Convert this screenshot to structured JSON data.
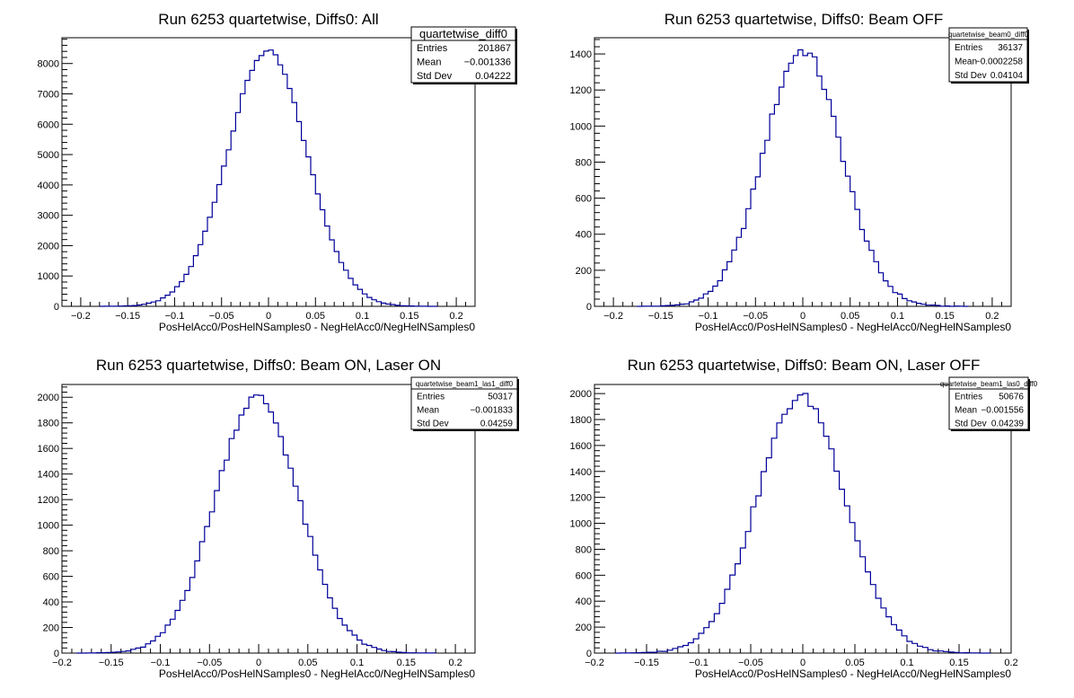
{
  "chart_data": [
    {
      "type": "histogram",
      "title": "Run 6253 quartetwise, Diffs0: All",
      "xlabel": "PosHelAcc0/PosHelNSamples0 - NegHelAcc0/NegHelNSamples0",
      "xlim": [
        -0.22,
        0.22
      ],
      "ylim": [
        0,
        8850
      ],
      "xticks": [
        -0.2,
        -0.15,
        -0.1,
        -0.05,
        0,
        0.05,
        0.1,
        0.15,
        0.2
      ],
      "xtick_labels": [
        "−0.2",
        "−0.15",
        "−0.1",
        "−0.05",
        "0",
        "0.05",
        "0.1",
        "0.15",
        "0.2"
      ],
      "yticks": [
        0,
        1000,
        2000,
        3000,
        4000,
        5000,
        6000,
        7000,
        8000
      ],
      "ytick_labels": [
        "0",
        "1000",
        "2000",
        "3000",
        "4000",
        "5000",
        "6000",
        "7000",
        "8000"
      ],
      "bin_width": 0.005,
      "peak": 8400,
      "mean": -0.001336,
      "std": 0.04222,
      "color": "#000099",
      "stats": {
        "name": "quartetwise_diff0",
        "rows": [
          {
            "label": "Entries",
            "value": "201867"
          },
          {
            "label": "Mean",
            "value": "−0.001336"
          },
          {
            "label": "Std Dev",
            "value": "0.04222"
          }
        ]
      }
    },
    {
      "type": "histogram",
      "title": "Run 6253 quartetwise, Diffs0: Beam OFF",
      "xlabel": "PosHelAcc0/PosHelNSamples0 - NegHelAcc0/NegHelNSamples0",
      "xlim": [
        -0.22,
        0.22
      ],
      "ylim": [
        0,
        1490
      ],
      "xticks": [
        -0.2,
        -0.15,
        -0.1,
        -0.05,
        0,
        0.05,
        0.1,
        0.15,
        0.2
      ],
      "xtick_labels": [
        "−0.2",
        "−0.15",
        "−0.1",
        "−0.05",
        "0",
        "0.05",
        "0.1",
        "0.15",
        "0.2"
      ],
      "yticks": [
        0,
        200,
        400,
        600,
        800,
        1000,
        1200,
        1400
      ],
      "ytick_labels": [
        "0",
        "200",
        "400",
        "600",
        "800",
        "1000",
        "1200",
        "1400"
      ],
      "bin_width": 0.005,
      "peak": 1420,
      "mean": -0.0002258,
      "std": 0.04104,
      "color": "#000099",
      "stats": {
        "name": "quartetwise_beam0_diff0",
        "rows": [
          {
            "label": "Entries",
            "value": "36137"
          },
          {
            "label": "Mean",
            "value": "−0.0002258"
          },
          {
            "label": "Std Dev",
            "value": "0.04104"
          }
        ]
      }
    },
    {
      "type": "histogram",
      "title": "Run 6253 quartetwise, Diffs0: Beam ON, Laser ON",
      "xlabel": "PosHelAcc0/PosHelNSamples0 - NegHelAcc0/NegHelNSamples0",
      "xlim": [
        -0.2,
        0.22
      ],
      "ylim": [
        0,
        2100
      ],
      "xticks": [
        -0.2,
        -0.15,
        -0.1,
        -0.05,
        0,
        0.05,
        0.1,
        0.15,
        0.2
      ],
      "xtick_labels": [
        "−0.2",
        "−0.15",
        "−0.1",
        "−0.05",
        "0",
        "0.05",
        "0.1",
        "0.15",
        "0.2"
      ],
      "yticks": [
        0,
        200,
        400,
        600,
        800,
        1000,
        1200,
        1400,
        1600,
        1800,
        2000
      ],
      "ytick_labels": [
        "0",
        "200",
        "400",
        "600",
        "800",
        "1000",
        "1200",
        "1400",
        "1600",
        "1800",
        "2000"
      ],
      "bin_width": 0.005,
      "peak": 2000,
      "mean": -0.001833,
      "std": 0.04259,
      "color": "#000099",
      "stats": {
        "name": "quartetwise_beam1_las1_diff0",
        "rows": [
          {
            "label": "Entries",
            "value": "50317"
          },
          {
            "label": "Mean",
            "value": "−0.001833"
          },
          {
            "label": "Std Dev",
            "value": "0.04259"
          }
        ]
      }
    },
    {
      "type": "histogram",
      "title": "Run 6253 quartetwise, Diffs0: Beam ON, Laser OFF",
      "xlabel": "PosHelAcc0/PosHelNSamples0 - NegHelAcc0/NegHelNSamples0",
      "xlim": [
        -0.2,
        0.2
      ],
      "ylim": [
        0,
        2070
      ],
      "xticks": [
        -0.2,
        -0.15,
        -0.1,
        -0.05,
        0,
        0.05,
        0.1,
        0.15,
        0.2
      ],
      "xtick_labels": [
        "−0.2",
        "−0.15",
        "−0.1",
        "−0.05",
        "0",
        "0.05",
        "0.1",
        "0.15",
        "0.2"
      ],
      "yticks": [
        0,
        200,
        400,
        600,
        800,
        1000,
        1200,
        1400,
        1600,
        1800,
        2000
      ],
      "ytick_labels": [
        "0",
        "200",
        "400",
        "600",
        "800",
        "1000",
        "1200",
        "1400",
        "1600",
        "1800",
        "2000"
      ],
      "bin_width": 0.005,
      "peak": 1975,
      "mean": -0.001556,
      "std": 0.04239,
      "color": "#000099",
      "stats": {
        "name": "quartetwise_beam1_las0_diff0",
        "rows": [
          {
            "label": "Entries",
            "value": "50676"
          },
          {
            "label": "Mean",
            "value": "−0.001556"
          },
          {
            "label": "Std Dev",
            "value": "0.04239"
          }
        ]
      }
    }
  ]
}
